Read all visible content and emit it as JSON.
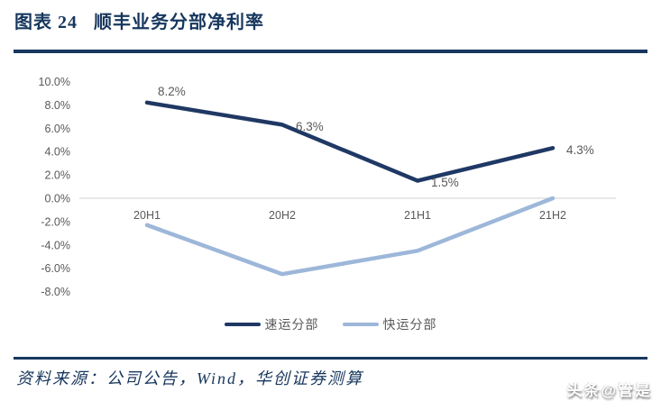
{
  "figure": {
    "label": "图表 24",
    "title": "顺丰业务分部净利率"
  },
  "source": {
    "text": "资料来源：公司公告，Wind，华创证券测算"
  },
  "watermark": {
    "text": "头条@管是"
  },
  "colors": {
    "navy": "#17375E",
    "series_dark": "#1F3864",
    "series_light": "#9DB7D9",
    "gridline": "#D9D9D9",
    "label_gray": "#595959"
  },
  "chart_data": {
    "type": "line",
    "title": "顺丰业务分部净利率",
    "categories": [
      "20H1",
      "20H2",
      "21H1",
      "21H2"
    ],
    "series": [
      {
        "name": "速运分部",
        "color": "#1F3864",
        "values": [
          8.2,
          6.3,
          1.5,
          4.3
        ],
        "point_labels": [
          "8.2%",
          "6.3%",
          "1.5%",
          "4.3%"
        ]
      },
      {
        "name": "快运分部",
        "color": "#9DB7D9",
        "values": [
          -2.3,
          -6.5,
          -4.5,
          0.0
        ],
        "point_labels": null
      }
    ],
    "xlabel": "",
    "ylabel": "",
    "ylim": [
      -8,
      10
    ],
    "ytick_step": 2,
    "ytick_format": "0.0%",
    "grid": "zero-axis-line-only",
    "legend_position": "bottom"
  }
}
